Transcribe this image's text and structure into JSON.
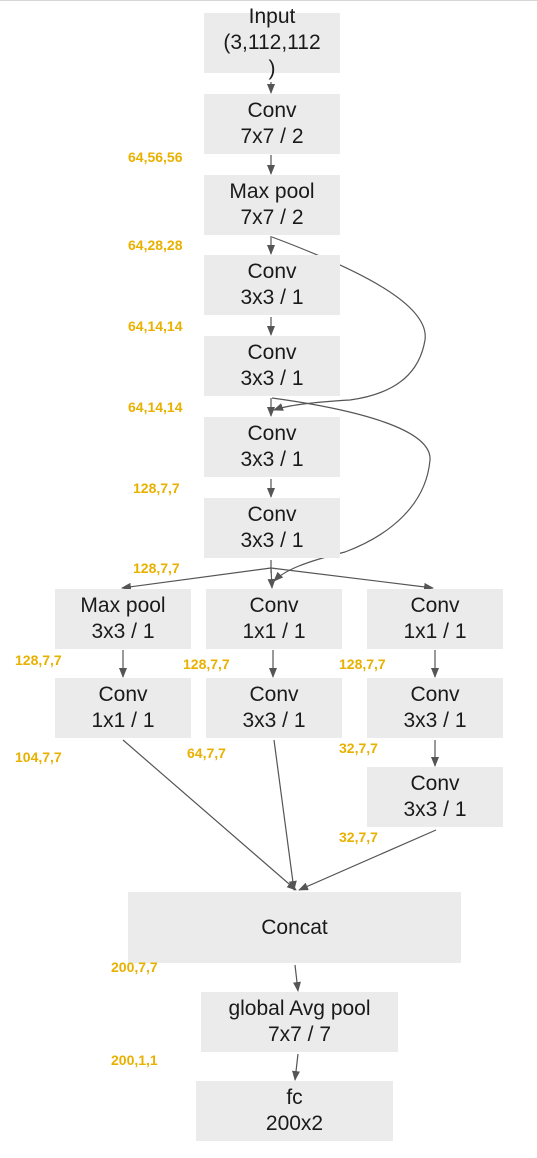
{
  "nodes": {
    "input": {
      "title": "Input",
      "detail": "(3,112,112",
      "extra": ")"
    },
    "conv1": {
      "title": "Conv",
      "detail": "7x7 / 2"
    },
    "pool1": {
      "title": "Max pool",
      "detail": "7x7 / 2"
    },
    "conv2": {
      "title": "Conv",
      "detail": "3x3 / 1"
    },
    "conv3": {
      "title": "Conv",
      "detail": "3x3 / 1"
    },
    "conv4": {
      "title": "Conv",
      "detail": "3x3 / 1"
    },
    "conv5": {
      "title": "Conv",
      "detail": "3x3 / 1"
    },
    "b1_pool": {
      "title": "Max pool",
      "detail": "3x3 / 1"
    },
    "b2_conv1": {
      "title": "Conv",
      "detail": "1x1 / 1"
    },
    "b3_conv1": {
      "title": "Conv",
      "detail": "1x1 / 1"
    },
    "b1_conv": {
      "title": "Conv",
      "detail": "1x1 / 1"
    },
    "b2_conv3": {
      "title": "Conv",
      "detail": "3x3 / 1"
    },
    "b3_conv3a": {
      "title": "Conv",
      "detail": "3x3 / 1"
    },
    "b3_conv3b": {
      "title": "Conv",
      "detail": "3x3 / 1"
    },
    "concat": {
      "title": "Concat"
    },
    "gap": {
      "title": "global Avg pool",
      "detail": "7x7 / 7"
    },
    "fc": {
      "title": "fc",
      "detail": "200x2"
    }
  },
  "dims": {
    "after_conv1": "64,56,56",
    "after_pool1": "64,28,28",
    "after_conv2": "64,14,14",
    "after_conv3": "64,14,14",
    "after_conv4": "128,7,7",
    "after_conv5": "128,7,7",
    "b1_after_pool": "128,7,7",
    "b2_after_conv1": "128,7,7",
    "b3_after_conv1": "128,7,7",
    "b1_out": "104,7,7",
    "b2_out": "64,7,7",
    "b3_mid": "32,7,7",
    "b3_out": "32,7,7",
    "after_concat": "200,7,7",
    "after_gap": "200,1,1"
  },
  "colors": {
    "box_fill": "#ebebeb",
    "dim_label": "#e8b100",
    "edge": "#555555"
  }
}
